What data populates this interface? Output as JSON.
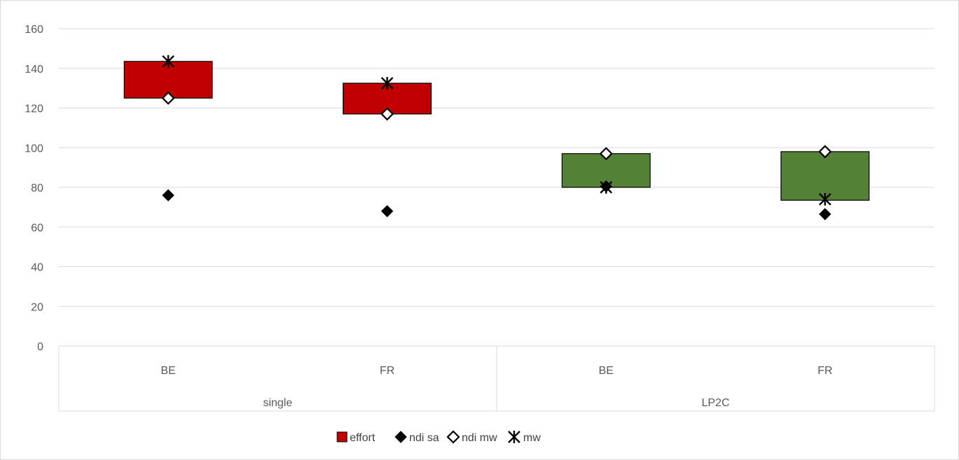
{
  "chart_data": {
    "type": "box",
    "title": "",
    "xlabel": "",
    "ylabel": "",
    "ylim": [
      0,
      160
    ],
    "y_ticks": [
      0,
      20,
      40,
      60,
      80,
      100,
      120,
      140,
      160
    ],
    "grid": true,
    "legend_position": "bottom",
    "groups": [
      {
        "name": "single",
        "categories": [
          "BE",
          "FR"
        ],
        "color": "#c00000"
      },
      {
        "name": "LP2C",
        "categories": [
          "BE",
          "FR"
        ],
        "color": "#538135"
      }
    ],
    "categories": [
      "BE",
      "FR",
      "BE",
      "FR"
    ],
    "series": [
      {
        "name": "effort",
        "marker": "box",
        "low": [
          125,
          117,
          80,
          73.5
        ],
        "high": [
          143.5,
          132.5,
          97,
          98
        ]
      },
      {
        "name": "ndi sa",
        "marker": "filled-diamond",
        "values": [
          76,
          68,
          80.5,
          66.5
        ]
      },
      {
        "name": "ndi mw",
        "marker": "open-diamond",
        "values": [
          125,
          117,
          97,
          98
        ]
      },
      {
        "name": "mw",
        "marker": "star",
        "values": [
          143.5,
          132.5,
          80,
          74
        ]
      }
    ],
    "colors": {
      "grid": "#d9d9d9",
      "box_stroke": "#000000",
      "text": "#595959"
    }
  }
}
